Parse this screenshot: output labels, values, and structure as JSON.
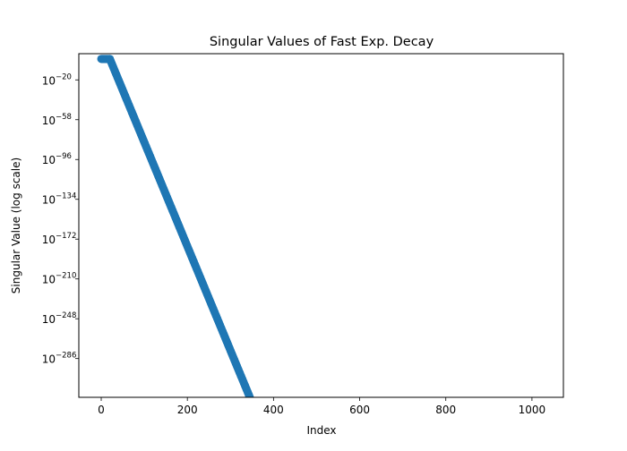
{
  "chart_data": {
    "type": "scatter",
    "title": "Singular Values of Fast Exp. Decay",
    "xlabel": "Index",
    "ylabel": "Singular Value (log scale)",
    "xlim": [
      -52,
      1073
    ],
    "ylim_log10": [
      -323,
      5
    ],
    "y_scale": "log",
    "x_ticks": [
      0,
      200,
      400,
      600,
      800,
      1000
    ],
    "y_ticks": [
      {
        "base": "10",
        "exponent": "−20",
        "log10_value": -20
      },
      {
        "base": "10",
        "exponent": "−58",
        "log10_value": -58
      },
      {
        "base": "10",
        "exponent": "−96",
        "log10_value": -96
      },
      {
        "base": "10",
        "exponent": "−134",
        "log10_value": -134
      },
      {
        "base": "10",
        "exponent": "−172",
        "log10_value": -172
      },
      {
        "base": "10",
        "exponent": "−210",
        "log10_value": -210
      },
      {
        "base": "10",
        "exponent": "−248",
        "log10_value": -248
      },
      {
        "base": "10",
        "exponent": "−286",
        "log10_value": -286
      }
    ],
    "grid": false,
    "series": [
      {
        "color": "#1f77b4",
        "segments": [
          {
            "x_start": 0,
            "x_end": 20,
            "log10_start": 0,
            "log10_end": 0
          },
          {
            "x_start": 20,
            "x_end": 345,
            "log10_start": 0,
            "log10_end": -323
          }
        ]
      }
    ]
  }
}
